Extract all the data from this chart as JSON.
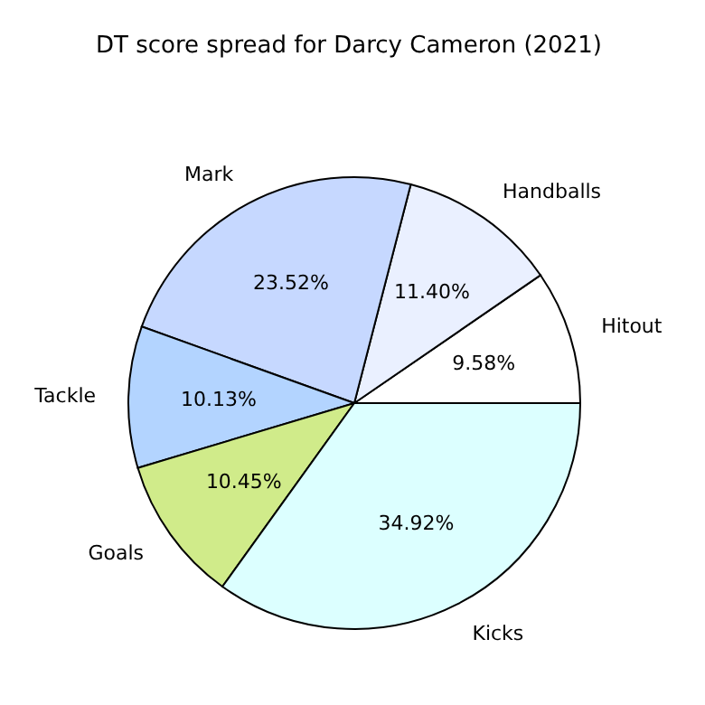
{
  "chart_data": {
    "type": "pie",
    "title": "DT score spread for Darcy Cameron (2021)",
    "categories": [
      "Hitout",
      "Handballs",
      "Mark",
      "Tackle",
      "Goals",
      "Kicks"
    ],
    "values": [
      9.58,
      11.4,
      23.52,
      10.13,
      10.45,
      34.92
    ],
    "value_labels": [
      "9.58%",
      "11.40%",
      "23.52%",
      "10.13%",
      "10.45%",
      "34.92%"
    ],
    "colors": [
      "#ffffff",
      "#eaf0ff",
      "#c6d8ff",
      "#b3d4ff",
      "#d0eb8a",
      "#dcffff"
    ],
    "legend": false
  }
}
